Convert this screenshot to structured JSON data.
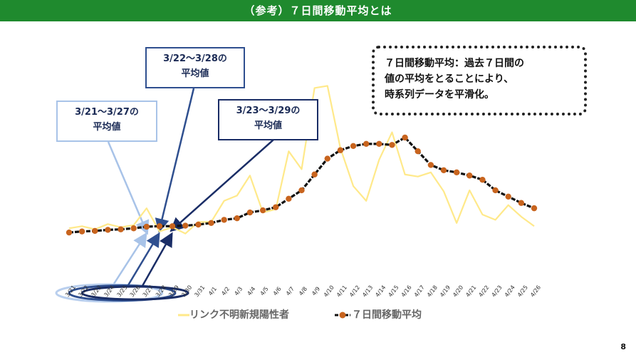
{
  "header": {
    "title": "（参考）７日間移動平均とは"
  },
  "note": {
    "lines": [
      "７日間移動平均：過去７日間の",
      "値の平均をとることにより、",
      "時系列データを平滑化。"
    ]
  },
  "callouts": [
    {
      "line1": "3/21～3/27の",
      "line2": "平均値"
    },
    {
      "line1": "3/22～3/28の",
      "line2": "平均値"
    },
    {
      "line1": "3/23～3/29の",
      "line2": "平均値"
    }
  ],
  "page_number": "8",
  "colors": {
    "header": "#1f8a2e",
    "raw_series": "#ffe98a",
    "avg_line": "#111111",
    "avg_marker": "#c8641e"
  },
  "chart_data": {
    "type": "line",
    "categories": [
      "3/21",
      "3/22",
      "3/23",
      "3/24",
      "3/25",
      "3/26",
      "3/27",
      "3/28",
      "3/29",
      "3/30",
      "3/31",
      "4/1",
      "4/2",
      "4/3",
      "4/4",
      "4/5",
      "4/6",
      "4/7",
      "4/8",
      "4/9",
      "4/10",
      "4/11",
      "4/12",
      "4/13",
      "4/14",
      "4/15",
      "4/16",
      "4/17",
      "4/18",
      "4/19",
      "4/20",
      "4/21",
      "4/22",
      "4/23",
      "4/24",
      "4/25",
      "4/26"
    ],
    "series": [
      {
        "name": "リンク不明新規陽性者",
        "values": [
          12,
          14,
          11,
          16,
          13,
          15,
          31,
          9,
          13,
          7,
          18,
          18,
          38,
          43,
          62,
          27,
          30,
          85,
          68,
          145,
          147,
          88,
          52,
          38,
          77,
          103,
          63,
          61,
          65,
          47,
          17,
          48,
          25,
          20,
          34,
          23,
          14
        ]
      },
      {
        "name": "７日間移動平均",
        "values": [
          8,
          9,
          9.5,
          10.5,
          11,
          12,
          13.5,
          14,
          14,
          14.5,
          15.5,
          17,
          20,
          21.5,
          27,
          29,
          32,
          40,
          48,
          63,
          78,
          86,
          90,
          92,
          92,
          91,
          98,
          85,
          72,
          67,
          65,
          62,
          58,
          48,
          42,
          36,
          31
        ]
      }
    ],
    "legend_position": "bottom",
    "grid": false
  }
}
